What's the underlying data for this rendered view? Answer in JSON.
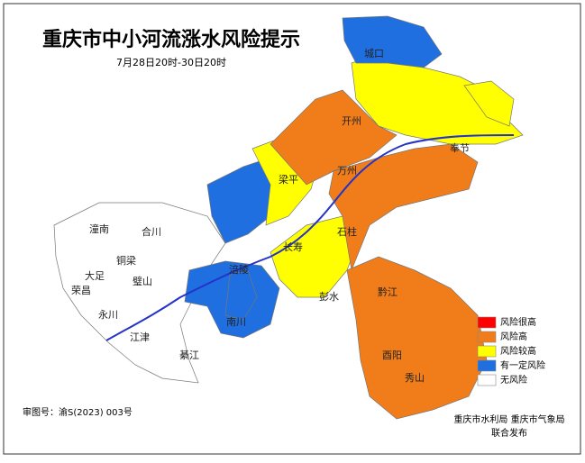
{
  "title": "重庆市中小河流涨水风险提示",
  "subtitle": "7月28日20时-30日20时",
  "legend": [
    {
      "label": "风险很高",
      "color": "#ff0000"
    },
    {
      "label": "风险高",
      "color": "#f07d1a"
    },
    {
      "label": "风险较高",
      "color": "#ffff00"
    },
    {
      "label": "有一定风险",
      "color": "#1f6fe0"
    },
    {
      "label": "无风险",
      "color": "#ffffff"
    }
  ],
  "districts": [
    "城口",
    "开州",
    "万州",
    "奉节",
    "梁平",
    "石柱",
    "涪陵",
    "长寿",
    "彭水",
    "黔江",
    "酉阳",
    "秀山",
    "潼南",
    "合川",
    "铜梁",
    "大足",
    "璧山",
    "荣昌",
    "永川",
    "江津",
    "綦江",
    "南川"
  ],
  "review_number": "审图号：渝S(2023) 003号",
  "publisher": "重庆市水利局  重庆市气象局",
  "publish_note": "联合发布"
}
